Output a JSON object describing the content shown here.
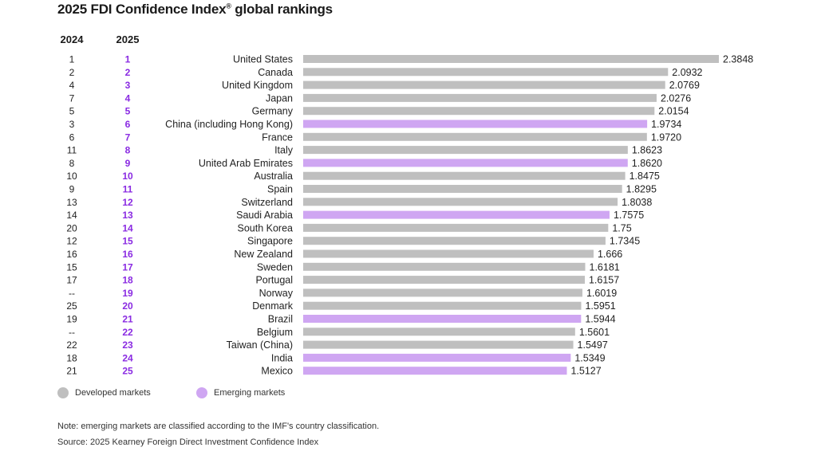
{
  "title": "2025 FDI Confidence Index",
  "title_mark": "®",
  "title_suffix": " global rankings",
  "column_headers": {
    "y2024": "2024",
    "y2025": "2025"
  },
  "colors": {
    "developed": "#bfbfbf",
    "emerging": "#cfa6f2",
    "rank2025": "#8a2be2",
    "text": "#222222"
  },
  "legend": {
    "developed": "Developed markets",
    "emerging": "Emerging markets"
  },
  "note": "Note: emerging markets are classified according to the IMF's country classification.",
  "source": "Source: 2025 Kearney Foreign Direct Investment Confidence Index",
  "chart_data": {
    "type": "bar",
    "orientation": "horizontal",
    "title": "2025 FDI Confidence Index® global rankings",
    "xlim": [
      0,
      2.4
    ],
    "grid": false,
    "legend_placement": "bottom-left",
    "rows": [
      {
        "rank2024": "1",
        "rank2025": "1",
        "country": "United States",
        "value": 2.3848,
        "label": "2.3848",
        "market": "developed"
      },
      {
        "rank2024": "2",
        "rank2025": "2",
        "country": "Canada",
        "value": 2.0932,
        "label": "2.0932",
        "market": "developed"
      },
      {
        "rank2024": "4",
        "rank2025": "3",
        "country": "United Kingdom",
        "value": 2.0769,
        "label": "2.0769",
        "market": "developed"
      },
      {
        "rank2024": "7",
        "rank2025": "4",
        "country": "Japan",
        "value": 2.0276,
        "label": "2.0276",
        "market": "developed"
      },
      {
        "rank2024": "5",
        "rank2025": "5",
        "country": "Germany",
        "value": 2.0154,
        "label": "2.0154",
        "market": "developed"
      },
      {
        "rank2024": "3",
        "rank2025": "6",
        "country": "China (including Hong Kong)",
        "value": 1.9734,
        "label": "1.9734",
        "market": "emerging"
      },
      {
        "rank2024": "6",
        "rank2025": "7",
        "country": "France",
        "value": 1.972,
        "label": "1.9720",
        "market": "developed"
      },
      {
        "rank2024": "11",
        "rank2025": "8",
        "country": "Italy",
        "value": 1.8623,
        "label": "1.8623",
        "market": "developed"
      },
      {
        "rank2024": "8",
        "rank2025": "9",
        "country": "United Arab Emirates",
        "value": 1.862,
        "label": "1.8620",
        "market": "emerging"
      },
      {
        "rank2024": "10",
        "rank2025": "10",
        "country": "Australia",
        "value": 1.8475,
        "label": "1.8475",
        "market": "developed"
      },
      {
        "rank2024": "9",
        "rank2025": "11",
        "country": "Spain",
        "value": 1.8295,
        "label": "1.8295",
        "market": "developed"
      },
      {
        "rank2024": "13",
        "rank2025": "12",
        "country": "Switzerland",
        "value": 1.8038,
        "label": "1.8038",
        "market": "developed"
      },
      {
        "rank2024": "14",
        "rank2025": "13",
        "country": "Saudi Arabia",
        "value": 1.7575,
        "label": "1.7575",
        "market": "emerging"
      },
      {
        "rank2024": "20",
        "rank2025": "14",
        "country": "South Korea",
        "value": 1.75,
        "label": "1.75",
        "market": "developed"
      },
      {
        "rank2024": "12",
        "rank2025": "15",
        "country": "Singapore",
        "value": 1.7345,
        "label": "1.7345",
        "market": "developed"
      },
      {
        "rank2024": "16",
        "rank2025": "16",
        "country": "New Zealand",
        "value": 1.666,
        "label": "1.666",
        "market": "developed"
      },
      {
        "rank2024": "15",
        "rank2025": "17",
        "country": "Sweden",
        "value": 1.6181,
        "label": "1.6181",
        "market": "developed"
      },
      {
        "rank2024": "17",
        "rank2025": "18",
        "country": "Portugal",
        "value": 1.6157,
        "label": "1.6157",
        "market": "developed"
      },
      {
        "rank2024": "--",
        "rank2025": "19",
        "country": "Norway",
        "value": 1.6019,
        "label": "1.6019",
        "market": "developed"
      },
      {
        "rank2024": "25",
        "rank2025": "20",
        "country": "Denmark",
        "value": 1.5951,
        "label": "1.5951",
        "market": "developed"
      },
      {
        "rank2024": "19",
        "rank2025": "21",
        "country": "Brazil",
        "value": 1.5944,
        "label": "1.5944",
        "market": "emerging"
      },
      {
        "rank2024": "--",
        "rank2025": "22",
        "country": "Belgium",
        "value": 1.5601,
        "label": "1.5601",
        "market": "developed"
      },
      {
        "rank2024": "22",
        "rank2025": "23",
        "country": "Taiwan (China)",
        "value": 1.5497,
        "label": "1.5497",
        "market": "developed"
      },
      {
        "rank2024": "18",
        "rank2025": "24",
        "country": "India",
        "value": 1.5349,
        "label": "1.5349",
        "market": "emerging"
      },
      {
        "rank2024": "21",
        "rank2025": "25",
        "country": "Mexico",
        "value": 1.5127,
        "label": "1.5127",
        "market": "emerging"
      }
    ]
  }
}
